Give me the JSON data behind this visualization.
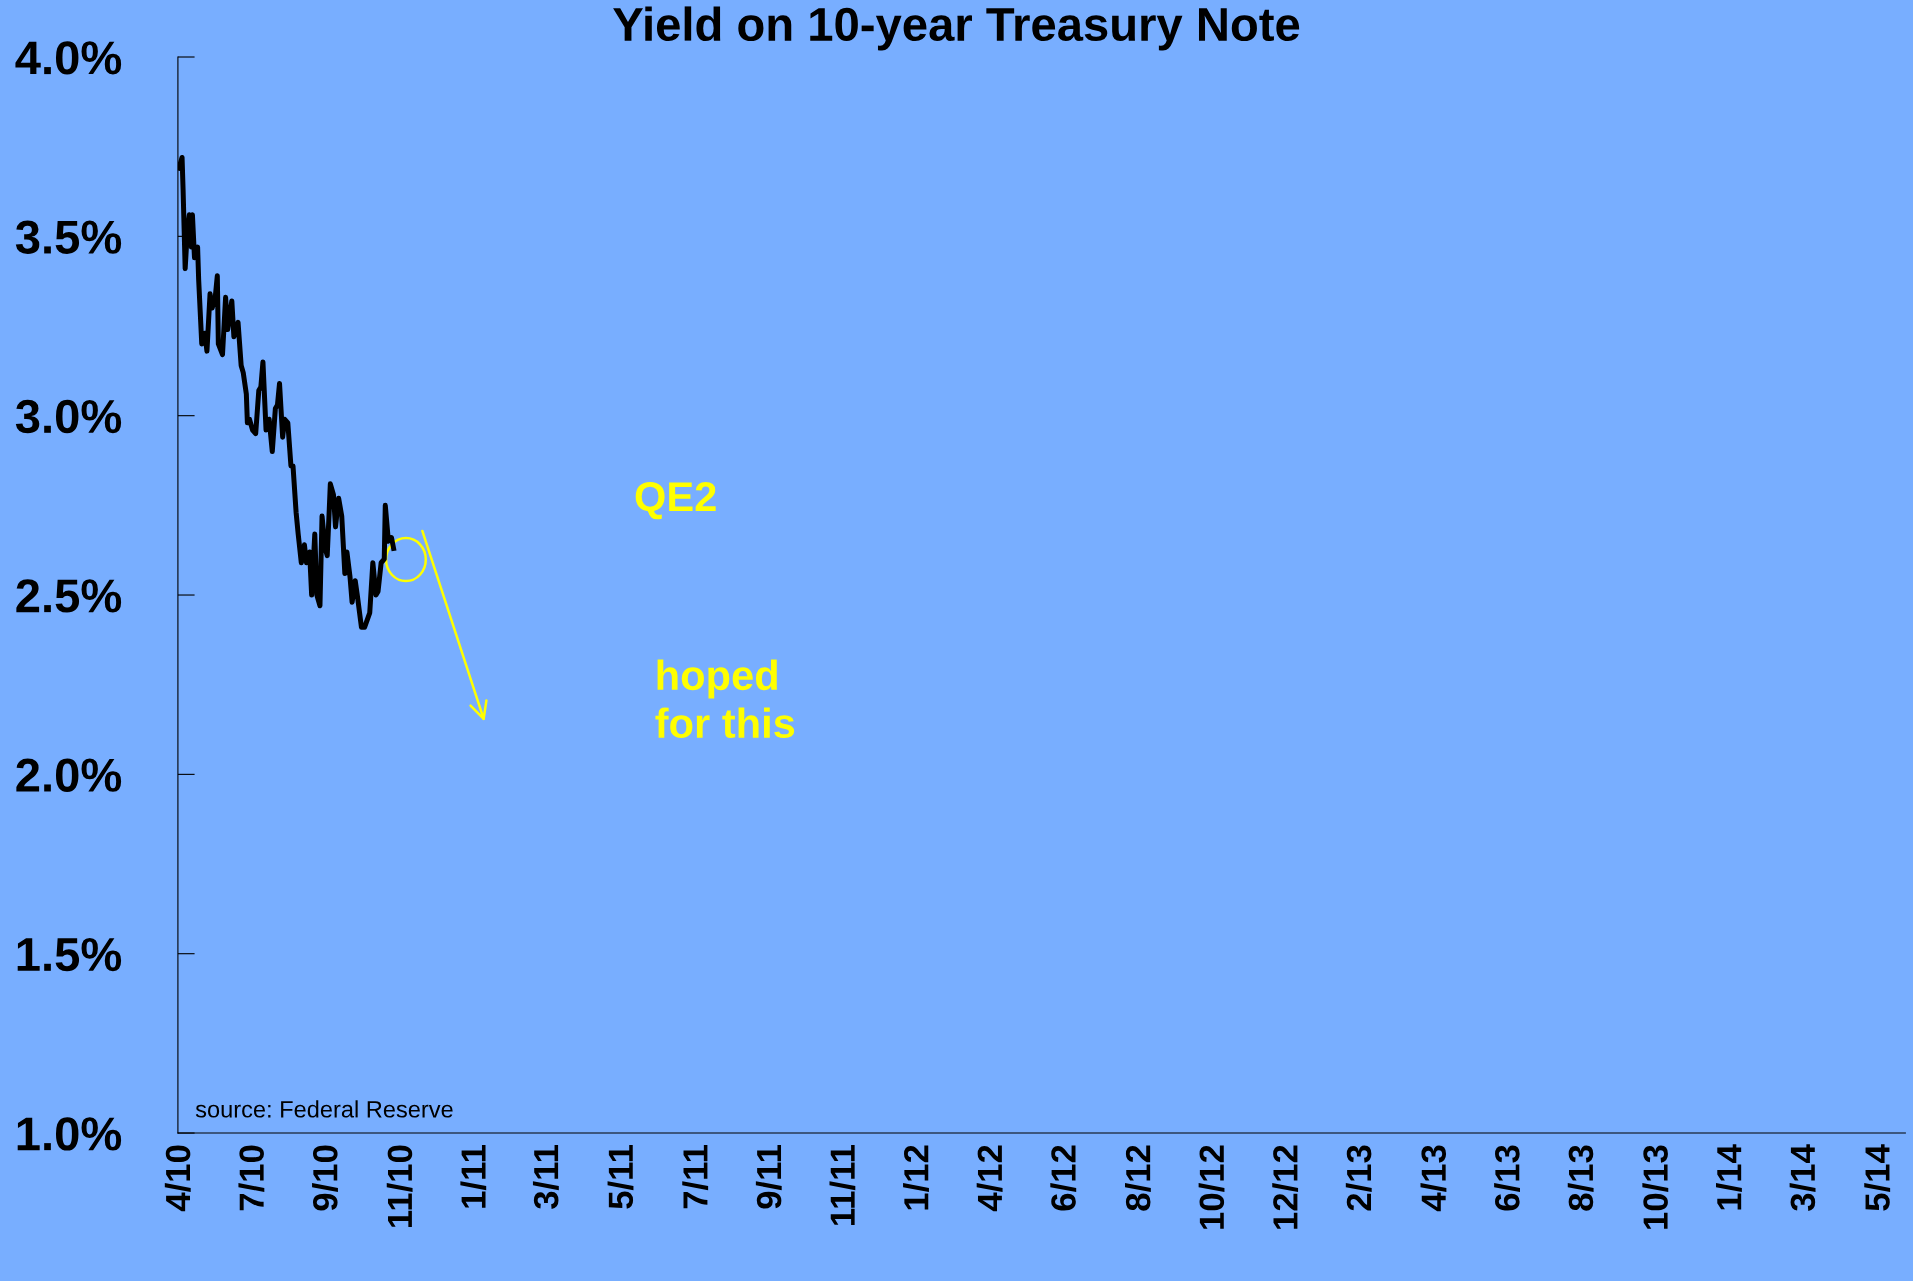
{
  "chart_data": {
    "type": "line",
    "title": "Yield on 10-year Treasury Note",
    "x": [
      "2010-03-30",
      "2010-04-02",
      "2010-04-03",
      "2010-04-05",
      "2010-04-07",
      "2010-04-09",
      "2010-04-11",
      "2010-04-12",
      "2010-04-14",
      "2010-04-17",
      "2010-04-18",
      "2010-04-21",
      "2010-04-24",
      "2010-04-26",
      "2010-04-29",
      "2010-05-01",
      "2010-05-04",
      "2010-05-06",
      "2010-05-07",
      "2010-05-11",
      "2010-05-14",
      "2010-05-16",
      "2010-05-20",
      "2010-05-22",
      "2010-05-26",
      "2010-05-29",
      "2010-05-31",
      "2010-06-03",
      "2010-06-04",
      "2010-06-06",
      "2010-06-09",
      "2010-06-12",
      "2010-06-15",
      "2010-06-17",
      "2010-06-19",
      "2010-06-22",
      "2010-06-25",
      "2010-06-28",
      "2010-07-01",
      "2010-07-03",
      "2010-07-05",
      "2010-07-08",
      "2010-07-10",
      "2010-07-13",
      "2010-07-16",
      "2010-07-18",
      "2010-07-21",
      "2010-07-23",
      "2010-07-26",
      "2010-07-29",
      "2010-07-31",
      "2010-08-03",
      "2010-08-05",
      "2010-08-08",
      "2010-08-10",
      "2010-08-13",
      "2010-08-15",
      "2010-08-18",
      "2010-08-20",
      "2010-08-22",
      "2010-08-23",
      "2010-08-26",
      "2010-08-28",
      "2010-08-31",
      "2010-09-03",
      "2010-09-06",
      "2010-09-08",
      "2010-09-11",
      "2010-09-13",
      "2010-09-16",
      "2010-09-18",
      "2010-09-22",
      "2010-09-25",
      "2010-09-30",
      "2010-10-03",
      "2010-10-06",
      "2010-10-08",
      "2010-10-11",
      "2010-10-14",
      "2010-10-15",
      "2010-10-18",
      "2010-10-21",
      "2010-10-23"
    ],
    "series": [
      {
        "color": "#000000",
        "values": [
          3.69,
          3.72,
          3.63,
          3.41,
          3.51,
          3.56,
          3.47,
          3.56,
          3.44,
          3.47,
          3.38,
          3.2,
          3.23,
          3.18,
          3.34,
          3.3,
          3.33,
          3.39,
          3.2,
          3.17,
          3.33,
          3.24,
          3.32,
          3.22,
          3.26,
          3.14,
          3.12,
          3.06,
          2.98,
          2.99,
          2.96,
          2.95,
          3.07,
          3.08,
          3.15,
          2.96,
          2.99,
          2.9,
          3.02,
          3.03,
          3.09,
          2.94,
          2.99,
          2.98,
          2.86,
          2.86,
          2.73,
          2.67,
          2.59,
          2.64,
          2.59,
          2.62,
          2.5,
          2.67,
          2.5,
          2.47,
          2.72,
          2.63,
          2.61,
          2.74,
          2.81,
          2.78,
          2.69,
          2.77,
          2.72,
          2.56,
          2.62,
          2.55,
          2.48,
          2.54,
          2.5,
          2.41,
          2.41,
          2.45,
          2.59,
          2.5,
          2.51,
          2.59,
          2.6,
          2.75,
          2.65,
          2.66,
          2.63
        ]
      }
    ],
    "ylim": [
      1.0,
      4.0
    ],
    "yticks": [
      {
        "value": 1.0,
        "label": "1.0%"
      },
      {
        "value": 1.5,
        "label": "1.5%"
      },
      {
        "value": 2.0,
        "label": "2.0%"
      },
      {
        "value": 2.5,
        "label": "2.5%"
      },
      {
        "value": 3.0,
        "label": "3.0%"
      },
      {
        "value": 3.5,
        "label": "3.5%"
      },
      {
        "value": 4.0,
        "label": "4.0%"
      }
    ],
    "xlim": [
      "2010-03-29",
      "2014-10-20"
    ],
    "xticks": [
      {
        "value": "2010-04-01",
        "label": "4/10"
      },
      {
        "value": "2010-06-11",
        "label": "7/10"
      },
      {
        "value": "2010-08-21",
        "label": "9/10"
      },
      {
        "value": "2010-11-01",
        "label": "11/10"
      },
      {
        "value": "2011-01-11",
        "label": "1/11"
      },
      {
        "value": "2011-03-22",
        "label": "3/11"
      },
      {
        "value": "2011-06-02",
        "label": "5/11"
      },
      {
        "value": "2011-08-13",
        "label": "7/11"
      },
      {
        "value": "2011-10-23",
        "label": "9/11"
      },
      {
        "value": "2012-01-02",
        "label": "11/11"
      },
      {
        "value": "2012-03-13",
        "label": "1/12"
      },
      {
        "value": "2012-05-23",
        "label": "4/12"
      },
      {
        "value": "2012-08-02",
        "label": "6/12"
      },
      {
        "value": "2012-10-13",
        "label": "8/12"
      },
      {
        "value": "2012-12-23",
        "label": "10/12"
      },
      {
        "value": "2013-03-04",
        "label": "12/12"
      },
      {
        "value": "2013-05-14",
        "label": "2/13"
      },
      {
        "value": "2013-07-25",
        "label": "4/13"
      },
      {
        "value": "2013-10-04",
        "label": "6/13"
      },
      {
        "value": "2013-12-14",
        "label": "8/13"
      },
      {
        "value": "2014-02-24",
        "label": "10/13"
      },
      {
        "value": "2014-05-06",
        "label": "1/14"
      },
      {
        "value": "2014-07-16",
        "label": "3/14"
      },
      {
        "value": "2014-09-26",
        "label": "5/14"
      }
    ],
    "annotations": [
      "QE2",
      "hoped\nfor this",
      "source: Federal Reserve"
    ],
    "grid": false,
    "legend": false
  }
}
